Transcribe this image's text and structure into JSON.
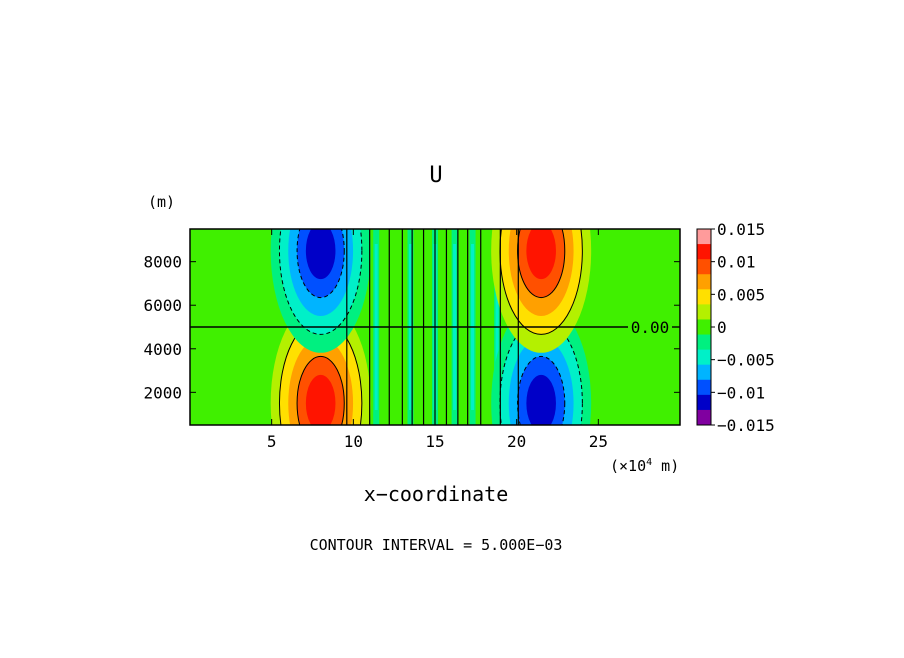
{
  "chart_data": {
    "type": "heatmap",
    "title": "U",
    "ylabel_unit": "(m)",
    "xlabel": "x−coordinate",
    "xunit_prefix": "(×10",
    "xunit_exp": "4",
    "xunit_suffix": " m)",
    "xlim": [
      0,
      30
    ],
    "ylim": [
      500,
      9500
    ],
    "x_ticks": [
      "5",
      "10",
      "15",
      "20",
      "25"
    ],
    "x_tick_values": [
      5,
      10,
      15,
      20,
      25
    ],
    "y_ticks": [
      "2000",
      "4000",
      "6000",
      "8000"
    ],
    "y_tick_values": [
      2000,
      4000,
      6000,
      8000
    ],
    "zero_contour_label": "0.00",
    "zero_contour_y": 5000,
    "contour_interval_text": "CONTOUR INTERVAL = 5.000E−03",
    "colorbar": {
      "ticks": [
        "0.015",
        "0.01",
        "0.005",
        "0",
        "−0.005",
        "−0.01",
        "−0.015"
      ],
      "tick_values": [
        0.015,
        0.01,
        0.005,
        0,
        -0.005,
        -0.01,
        -0.015
      ],
      "levels": [
        -0.015,
        -0.0125,
        -0.01,
        -0.0075,
        -0.005,
        -0.0025,
        0,
        0.0025,
        0.005,
        0.0075,
        0.01,
        0.0125,
        0.015
      ],
      "colors": [
        "#8000a0",
        "#0000c8",
        "#0050ff",
        "#00b4ff",
        "#00f0c8",
        "#00f080",
        "#40f000",
        "#b4f000",
        "#ffe000",
        "#ffa000",
        "#ff5000",
        "#ff1400",
        "#ff9b9b"
      ]
    },
    "cells": [
      {
        "name": "warm-core-left",
        "cx": 8.0,
        "cy": 1500,
        "level": 0.0125
      },
      {
        "name": "cold-core-left",
        "cx": 8.0,
        "cy": 8500,
        "level": -0.0125
      },
      {
        "name": "cold-core-right",
        "cx": 21.5,
        "cy": 1500,
        "level": -0.0125
      },
      {
        "name": "warm-core-right",
        "cx": 21.5,
        "cy": 8500,
        "level": 0.0125
      }
    ],
    "vertical_contour_x": [
      9.6,
      11.0,
      12.2,
      13.0,
      13.6,
      14.3,
      15.0,
      15.7,
      16.4,
      17.0,
      17.8,
      19.0,
      20.1
    ],
    "vertical_band_x": [
      11.4,
      13.5,
      15.0,
      16.2,
      17.3,
      18.8,
      19.7
    ],
    "vertical_band_level": -0.0025
  }
}
